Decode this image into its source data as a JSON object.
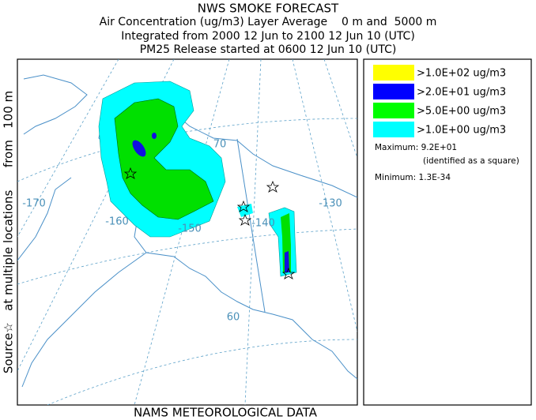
{
  "header": {
    "title": "NWS SMOKE FORECAST",
    "lines": [
      "Air Concentration (ug/m3) Layer Average    0 m and  5000 m",
      "Integrated from 2000 12 Jun to 2100 12 Jun 10 (UTC)",
      "PM25 Release started at 0600 12 Jun 10 (UTC)"
    ]
  },
  "side_label": "Source☆   at multiple locations      from   100 m",
  "footer": "NAMS METEOROLOGICAL DATA",
  "map": {
    "longitude_labels": [
      "-170",
      "-160",
      "-150",
      "-140",
      "-130"
    ],
    "latitude_labels": [
      "70",
      "60"
    ]
  },
  "legend": {
    "entries": [
      {
        "label": ">1.0E+02 ug/m3",
        "color": "#ffff00"
      },
      {
        "label": ">2.0E+01 ug/m3",
        "color": "#0000ff"
      },
      {
        "label": ">5.0E+00 ug/m3",
        "color": "#00ff00"
      },
      {
        "label": ">1.0E+00 ug/m3",
        "color": "#00ffff"
      }
    ],
    "maximum": "Maximum: 9.2E+01",
    "maximum_note": "(identified as a square)",
    "minimum": "Minimum: 1.3E-34"
  }
}
